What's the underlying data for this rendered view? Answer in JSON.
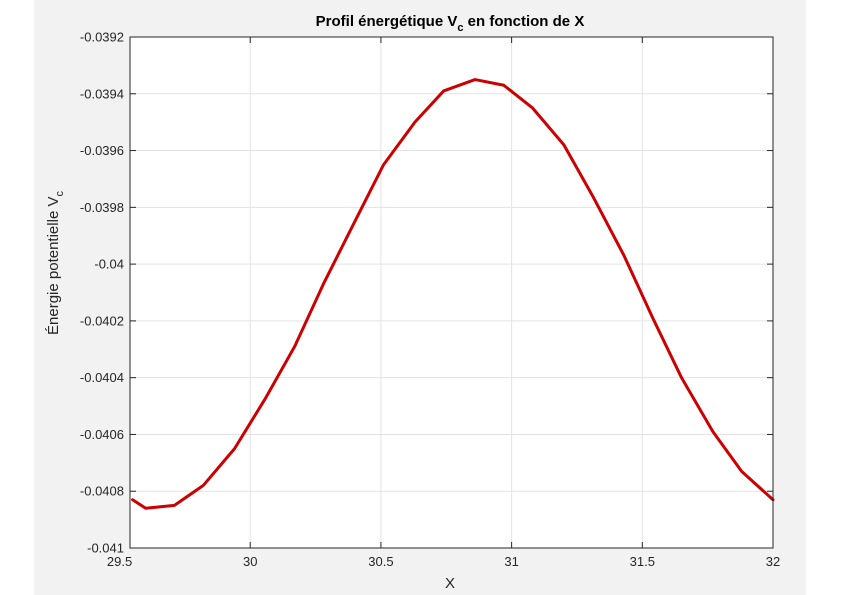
{
  "chart_data": {
    "type": "line",
    "title": "Profil énergétique V",
    "title_subscript": "c",
    "title_suffix": " en fonction de X",
    "xlabel": "X",
    "ylabel": "Énergie potentielle V",
    "ylabel_subscript": "c",
    "xlim": [
      29.54,
      32
    ],
    "ylim": [
      -0.041,
      -0.0392
    ],
    "xticks": [
      29.5,
      30,
      30.5,
      31,
      31.5,
      32
    ],
    "xtick_labels": [
      "29.5",
      "30",
      "30.5",
      "31",
      "31.5",
      "32"
    ],
    "yticks": [
      -0.041,
      -0.0408,
      -0.0406,
      -0.0404,
      -0.0402,
      -0.04,
      -0.0398,
      -0.0396,
      -0.0394,
      -0.0392
    ],
    "ytick_labels": [
      "-0.041",
      "-0.0408",
      "-0.0406",
      "-0.0404",
      "-0.0402",
      "-0.04",
      "-0.0398",
      "-0.0396",
      "-0.0394",
      "-0.0392"
    ],
    "grid": true,
    "series": [
      {
        "color": "#cc0000",
        "x": [
          29.55,
          29.6,
          29.71,
          29.82,
          29.94,
          30.06,
          30.17,
          30.28,
          30.4,
          30.51,
          30.63,
          30.74,
          30.86,
          30.97,
          31.08,
          31.2,
          31.31,
          31.43,
          31.54,
          31.65,
          31.77,
          31.88,
          32.0
        ],
        "y": [
          -0.04083,
          -0.04086,
          -0.04085,
          -0.04078,
          -0.04065,
          -0.04047,
          -0.04029,
          -0.04007,
          -0.03985,
          -0.03965,
          -0.0395,
          -0.03939,
          -0.03935,
          -0.03937,
          -0.03945,
          -0.03958,
          -0.03976,
          -0.03997,
          -0.04019,
          -0.0404,
          -0.04059,
          -0.04073,
          -0.04083
        ]
      }
    ]
  }
}
